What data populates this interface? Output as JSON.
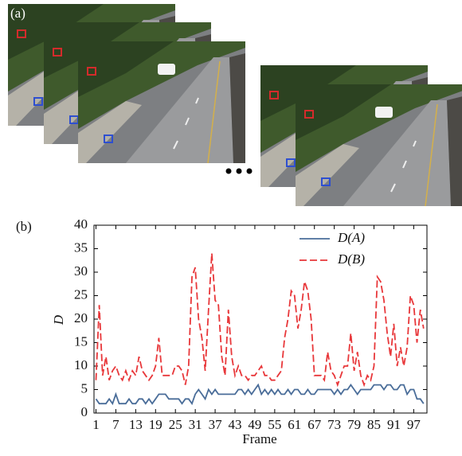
{
  "panel_labels": [
    "(a)",
    "(b)"
  ],
  "chart_data": {
    "type": "line",
    "xlabel": "Frame",
    "ylabel": "D",
    "x": [
      1,
      2,
      3,
      4,
      5,
      6,
      7,
      8,
      9,
      10,
      11,
      12,
      13,
      14,
      15,
      16,
      17,
      18,
      19,
      20,
      21,
      22,
      23,
      24,
      25,
      26,
      27,
      28,
      29,
      30,
      31,
      32,
      33,
      34,
      35,
      36,
      37,
      38,
      39,
      40,
      41,
      42,
      43,
      44,
      45,
      46,
      47,
      48,
      49,
      50,
      51,
      52,
      53,
      54,
      55,
      56,
      57,
      58,
      59,
      60,
      61,
      62,
      63,
      64,
      65,
      66,
      67,
      68,
      69,
      70,
      71,
      72,
      73,
      74,
      75,
      76,
      77,
      78,
      79,
      80,
      81,
      82,
      83,
      84,
      85,
      86,
      87,
      88,
      89,
      90,
      91,
      92,
      93,
      94,
      95,
      96,
      97,
      98,
      99,
      100
    ],
    "series": [
      {
        "name": "D(A)",
        "color": "#4a6d99",
        "style": "solid",
        "values": [
          3,
          2,
          2,
          2,
          3,
          2,
          4,
          2,
          2,
          2,
          3,
          2,
          2,
          3,
          3,
          2,
          3,
          2,
          3,
          4,
          4,
          4,
          3,
          3,
          3,
          3,
          2,
          3,
          3,
          2,
          4,
          5,
          4,
          3,
          5,
          4,
          5,
          4,
          4,
          4,
          4,
          4,
          4,
          5,
          5,
          4,
          5,
          4,
          5,
          6,
          4,
          5,
          4,
          5,
          4,
          5,
          4,
          4,
          5,
          4,
          5,
          5,
          4,
          4,
          5,
          4,
          4,
          5,
          5,
          5,
          5,
          5,
          4,
          5,
          4,
          5,
          5,
          6,
          5,
          4,
          5,
          5,
          5,
          5,
          6,
          6,
          6,
          5,
          6,
          6,
          5,
          5,
          6,
          6,
          4,
          5,
          5,
          3,
          3,
          2
        ]
      },
      {
        "name": "D(B)",
        "color": "#e8373a",
        "style": "dashed",
        "values": [
          7,
          23,
          8,
          12,
          7,
          9,
          10,
          8,
          7,
          9,
          7,
          9,
          8,
          12,
          9,
          8,
          7,
          8,
          10,
          16,
          8,
          8,
          8,
          8,
          10,
          10,
          9,
          6,
          10,
          29,
          31,
          20,
          16,
          9,
          22,
          34,
          24,
          23,
          12,
          8,
          22,
          12,
          8,
          10,
          8,
          8,
          7,
          8,
          8,
          9,
          10,
          8,
          8,
          7,
          7,
          8,
          9,
          16,
          20,
          26,
          25,
          18,
          22,
          28,
          26,
          20,
          8,
          8,
          8,
          7,
          13,
          9,
          8,
          6,
          8,
          10,
          10,
          17,
          9,
          13,
          8,
          6,
          8,
          7,
          10,
          29,
          28,
          24,
          17,
          12,
          19,
          10,
          14,
          10,
          14,
          25,
          23,
          15,
          22,
          18
        ]
      }
    ],
    "xlim": [
      0.4,
      101
    ],
    "ylim": [
      0,
      40
    ],
    "xticks": [
      1,
      7,
      13,
      19,
      25,
      31,
      37,
      43,
      49,
      55,
      61,
      67,
      73,
      79,
      85,
      91,
      97
    ],
    "yticks": [
      0,
      5,
      10,
      15,
      20,
      25,
      30,
      35,
      40
    ],
    "legend": "upper right"
  }
}
